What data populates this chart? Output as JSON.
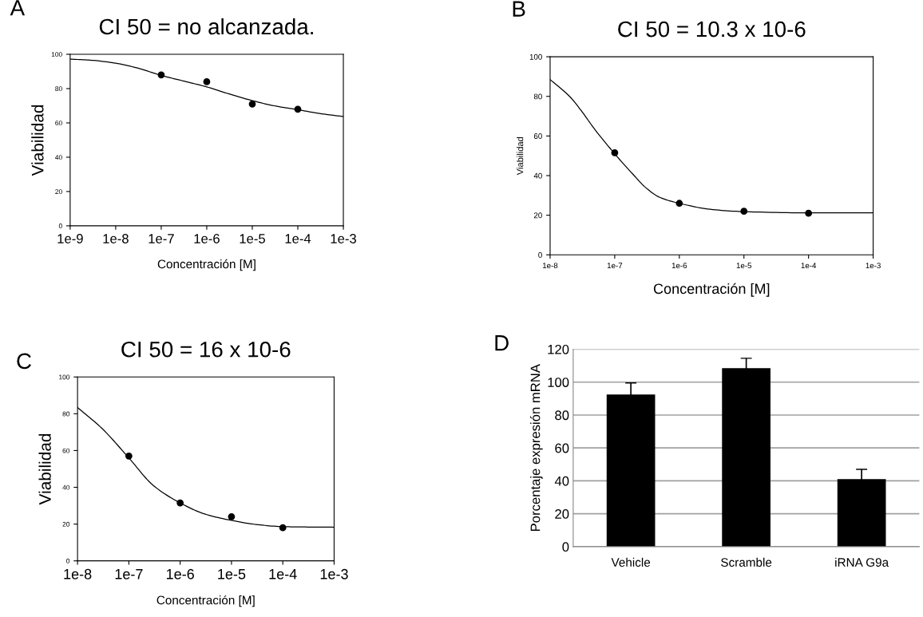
{
  "chart_data": [
    {
      "type": "scatter",
      "title": "CI 50 = no alcanzada.",
      "xlabel": "Concentración [M]",
      "ylabel": "Viabilidad",
      "annotations": [
        "A"
      ],
      "log": "x",
      "line_style": "solid",
      "grid": false,
      "xlim": [
        1e-09,
        0.001
      ],
      "xticks": [
        {
          "value": 1e-09,
          "label": "1e-9"
        },
        {
          "value": 1e-08,
          "label": "1e-8"
        },
        {
          "value": 1e-07,
          "label": "1e-7"
        },
        {
          "value": 1e-06,
          "label": "1e-6"
        },
        {
          "value": 1e-05,
          "label": "1e-5"
        },
        {
          "value": 0.0001,
          "label": "1e-4"
        },
        {
          "value": 0.001,
          "label": "1e-3"
        }
      ],
      "ylim": [
        0,
        100
      ],
      "yticks": [
        0,
        20,
        40,
        60,
        80,
        100
      ],
      "series": [
        {
          "type": "scatter",
          "marker": "circle",
          "color": "#000000",
          "x": [
            1e-07,
            1e-06,
            1e-05,
            0.0001
          ],
          "values": [
            88,
            84,
            71,
            68
          ]
        },
        {
          "type": "line",
          "marker": "none",
          "color": "#000000",
          "x": [
            1e-09,
            3e-09,
            1e-08,
            3e-08,
            1e-07,
            3e-07,
            1e-06,
            3e-06,
            1e-05,
            3e-05,
            0.0001,
            0.0003,
            0.001
          ],
          "values": [
            97.2,
            96.5,
            94.8,
            92,
            87.7,
            84.5,
            81,
            77,
            73,
            70,
            67.7,
            65.5,
            63.7
          ]
        }
      ]
    },
    {
      "type": "scatter",
      "title": "CI 50 = 10.3 x 10-6",
      "xlabel": "Concentración [M]",
      "ylabel": "Viabilidad",
      "annotations": [
        "B"
      ],
      "log": "x",
      "line_style": "solid",
      "grid": false,
      "xlim": [
        1e-08,
        0.001
      ],
      "xticks": [
        {
          "value": 1e-08,
          "label": "1e-8"
        },
        {
          "value": 1e-07,
          "label": "1e-7"
        },
        {
          "value": 1e-06,
          "label": "1e-6"
        },
        {
          "value": 1e-05,
          "label": "1e-5"
        },
        {
          "value": 0.0001,
          "label": "1e-4"
        },
        {
          "value": 0.001,
          "label": "1e-3"
        }
      ],
      "ylim": [
        0,
        100
      ],
      "yticks": [
        0,
        20,
        40,
        60,
        80,
        100
      ],
      "series": [
        {
          "type": "scatter",
          "marker": "circle",
          "color": "#000000",
          "x": [
            1e-07,
            1e-06,
            1e-05,
            0.0001
          ],
          "values": [
            51.5,
            26,
            22,
            21
          ]
        },
        {
          "type": "line",
          "marker": "none",
          "color": "#000000",
          "x": [
            1e-08,
            2e-08,
            3e-08,
            5e-08,
            1e-07,
            2e-07,
            3e-07,
            5e-07,
            1e-06,
            3e-06,
            1e-05,
            0.0001,
            0.001
          ],
          "values": [
            88.5,
            80,
            73,
            63,
            51,
            40,
            34,
            29,
            26,
            23,
            21.8,
            21.2,
            21.2
          ]
        }
      ]
    },
    {
      "type": "scatter",
      "title": "CI 50 = 16 x 10-6",
      "xlabel": "Concentración [M]",
      "ylabel": "Viabilidad",
      "annotations": [
        "C"
      ],
      "log": "x",
      "line_style": "solid",
      "grid": false,
      "xlim": [
        1e-08,
        0.001
      ],
      "xticks": [
        {
          "value": 1e-08,
          "label": "1e-8"
        },
        {
          "value": 1e-07,
          "label": "1e-7"
        },
        {
          "value": 1e-06,
          "label": "1e-6"
        },
        {
          "value": 1e-05,
          "label": "1e-5"
        },
        {
          "value": 0.0001,
          "label": "1e-4"
        },
        {
          "value": 0.001,
          "label": "1e-3"
        }
      ],
      "ylim": [
        0,
        100
      ],
      "yticks": [
        0,
        20,
        40,
        60,
        80,
        100
      ],
      "series": [
        {
          "type": "scatter",
          "marker": "circle",
          "color": "#000000",
          "x": [
            1e-07,
            1e-06,
            1e-05,
            0.0001
          ],
          "values": [
            57,
            31.5,
            24,
            18
          ]
        },
        {
          "type": "line",
          "marker": "none",
          "color": "#000000",
          "x": [
            1e-08,
            3e-08,
            1e-07,
            3e-07,
            1e-06,
            3e-06,
            1e-05,
            3e-05,
            0.0001,
            0.0003,
            0.001
          ],
          "values": [
            83.4,
            72,
            56,
            41,
            31.5,
            25.5,
            22,
            19.8,
            18.6,
            18.4,
            18.3
          ]
        }
      ]
    },
    {
      "type": "bar",
      "ylabel": "Porcentaje expresión mRNA",
      "annotations": [
        "D"
      ],
      "grid": "y",
      "categories": [
        "Vehicle",
        "Scramble",
        "iRNA G9a"
      ],
      "ylim": [
        0,
        120
      ],
      "yticks": [
        0,
        20,
        40,
        60,
        80,
        100,
        120
      ],
      "values": [
        92.5,
        108.5,
        41
      ],
      "errors": [
        7,
        6,
        6
      ],
      "color": "#000000"
    }
  ]
}
